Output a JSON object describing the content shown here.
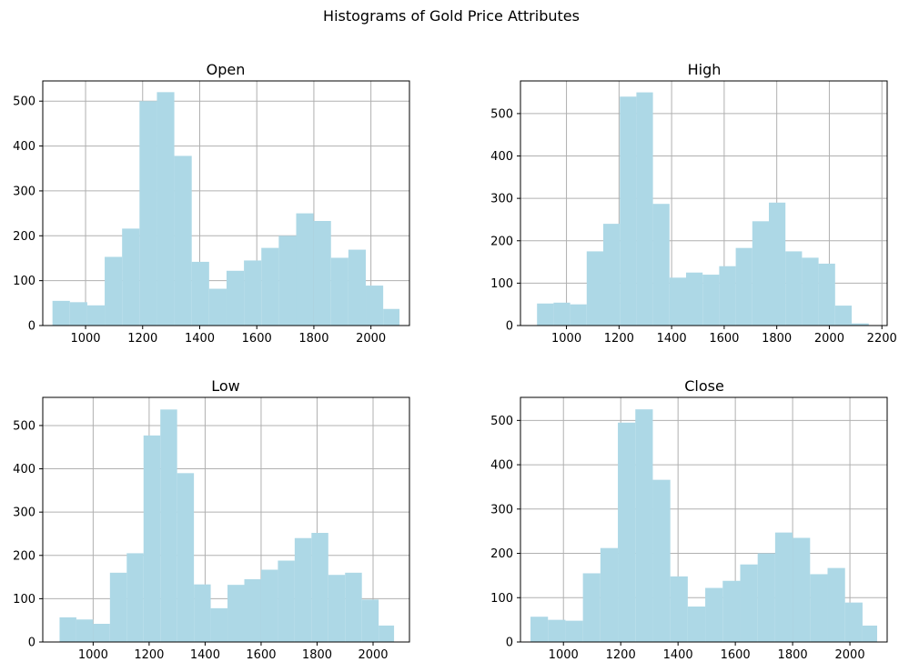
{
  "figure": {
    "suptitle": "Histograms of Gold Price Attributes",
    "bar_color": "#add8e6"
  },
  "chart_data": [
    {
      "type": "bar",
      "title": "Open",
      "xlabel": "",
      "ylabel": "",
      "grid": true,
      "xlim": [
        850,
        2135
      ],
      "ylim": [
        0,
        545
      ],
      "xticks": [
        1000,
        1200,
        1400,
        1600,
        1800,
        2000
      ],
      "yticks": [
        0,
        100,
        200,
        300,
        400,
        500
      ],
      "bin_edges": [
        884,
        945,
        1006,
        1067,
        1128,
        1189,
        1250,
        1311,
        1372,
        1433,
        1494,
        1555,
        1616,
        1677,
        1738,
        1799,
        1860,
        1921,
        1982,
        2043,
        2100
      ],
      "values": [
        55,
        52,
        45,
        153,
        216,
        500,
        520,
        378,
        142,
        82,
        122,
        145,
        173,
        200,
        250,
        233,
        151,
        169,
        89,
        37
      ]
    },
    {
      "type": "bar",
      "title": "High",
      "xlabel": "",
      "ylabel": "",
      "grid": true,
      "xlim": [
        825,
        2220
      ],
      "ylim": [
        0,
        577
      ],
      "xticks": [
        1000,
        1200,
        1400,
        1600,
        1800,
        2000,
        2200
      ],
      "yticks": [
        0,
        100,
        200,
        300,
        400,
        500
      ],
      "bin_edges": [
        888,
        951,
        1014,
        1077,
        1140,
        1203,
        1266,
        1329,
        1392,
        1455,
        1518,
        1581,
        1644,
        1707,
        1770,
        1833,
        1896,
        1959,
        2022,
        2085,
        2150
      ],
      "values": [
        52,
        54,
        50,
        175,
        240,
        540,
        550,
        287,
        113,
        125,
        120,
        140,
        183,
        246,
        290,
        175,
        160,
        146,
        47,
        5
      ]
    },
    {
      "type": "bar",
      "title": "Low",
      "xlabel": "",
      "ylabel": "",
      "grid": true,
      "xlim": [
        820,
        2130
      ],
      "ylim": [
        0,
        565
      ],
      "xticks": [
        1000,
        1200,
        1400,
        1600,
        1800,
        2000
      ],
      "yticks": [
        0,
        100,
        200,
        300,
        400,
        500
      ],
      "bin_edges": [
        880,
        940,
        1000,
        1060,
        1120,
        1180,
        1240,
        1300,
        1360,
        1420,
        1480,
        1540,
        1600,
        1660,
        1720,
        1780,
        1840,
        1900,
        1960,
        2020,
        2075
      ],
      "values": [
        57,
        52,
        42,
        160,
        205,
        477,
        537,
        390,
        133,
        78,
        132,
        145,
        167,
        188,
        240,
        252,
        155,
        160,
        98,
        38
      ]
    },
    {
      "type": "bar",
      "title": "Close",
      "xlabel": "",
      "ylabel": "",
      "grid": true,
      "xlim": [
        850,
        2130
      ],
      "ylim": [
        0,
        552
      ],
      "xticks": [
        1000,
        1200,
        1400,
        1600,
        1800,
        2000
      ],
      "yticks": [
        0,
        100,
        200,
        300,
        400,
        500
      ],
      "bin_edges": [
        885,
        946,
        1007,
        1068,
        1129,
        1190,
        1251,
        1312,
        1373,
        1434,
        1495,
        1556,
        1617,
        1678,
        1739,
        1800,
        1861,
        1922,
        1983,
        2044,
        2095
      ],
      "values": [
        57,
        50,
        48,
        155,
        212,
        495,
        525,
        366,
        148,
        80,
        122,
        138,
        175,
        200,
        247,
        235,
        153,
        167,
        89,
        37
      ]
    }
  ]
}
